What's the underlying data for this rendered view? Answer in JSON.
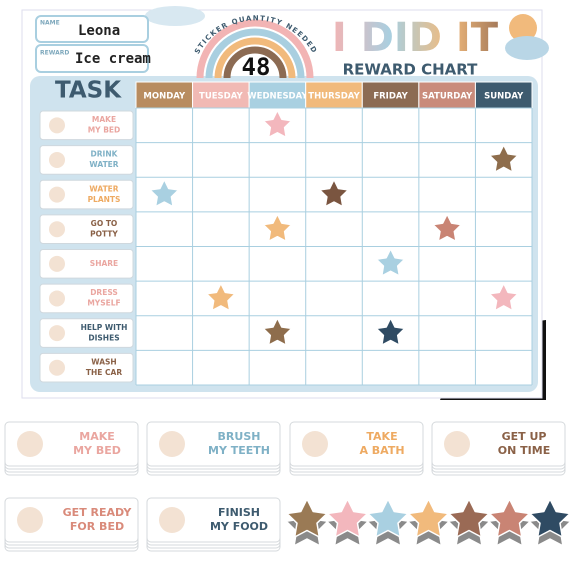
{
  "header": {
    "name_label": "NAME",
    "name": "Leona",
    "reward_label": "REWARD",
    "reward": "Ice cream",
    "sticker_caption": "STICKER QUANTITY NEEDED",
    "sticker_count": "48",
    "title": "I DID IT",
    "subtitle": "REWARD CHART"
  },
  "table": {
    "task_header": "TASK",
    "days": [
      {
        "label": "MONDAY",
        "color": "#b88c60"
      },
      {
        "label": "TUESDAY",
        "color": "#f1b9b4"
      },
      {
        "label": "WEDNESDAY",
        "color": "#a9d0e1"
      },
      {
        "label": "THURSDAY",
        "color": "#f1ba7c"
      },
      {
        "label": "FRIDAY",
        "color": "#8c6b53"
      },
      {
        "label": "SATURDAY",
        "color": "#c98b7b"
      },
      {
        "label": "SUNDAY",
        "color": "#3e5b6f"
      }
    ],
    "tasks": [
      {
        "lines": [
          "MAKE",
          "MY BED"
        ],
        "color": "#eaa6a0"
      },
      {
        "lines": [
          "DRINK",
          "WATER"
        ],
        "color": "#7fb1c6"
      },
      {
        "lines": [
          "WATER",
          "PLANTS"
        ],
        "color": "#eeaa62"
      },
      {
        "lines": [
          "GO TO",
          "POTTY"
        ],
        "color": "#8a6147"
      },
      {
        "lines": [
          "SHARE"
        ],
        "color": "#eaa6a0"
      },
      {
        "lines": [
          "DRESS",
          "MYSELF"
        ],
        "color": "#eaa6a0"
      },
      {
        "lines": [
          "HELP WITH",
          "DISHES"
        ],
        "color": "#3e5b6f"
      },
      {
        "lines": [
          "WASH",
          "THE CAR"
        ],
        "color": "#8a6147"
      }
    ],
    "stars": [
      [
        null,
        null,
        "#f3b7bd",
        null,
        null,
        null,
        null
      ],
      [
        null,
        null,
        null,
        null,
        null,
        null,
        "#8e6d4c"
      ],
      [
        "#a9d0e1",
        null,
        null,
        "#7a5540",
        null,
        null,
        null
      ],
      [
        null,
        null,
        "#f1ba7c",
        null,
        null,
        "#c98474",
        null
      ],
      [
        null,
        null,
        null,
        null,
        "#a9d0e1",
        null,
        null
      ],
      [
        null,
        "#f1ba7c",
        null,
        null,
        null,
        null,
        "#f3b7bd"
      ],
      [
        null,
        null,
        "#8e6d4c",
        null,
        "#2f4b63",
        null,
        null
      ],
      [
        null,
        null,
        null,
        null,
        null,
        null,
        null
      ]
    ]
  },
  "cards": [
    {
      "lines": [
        "MAKE",
        "MY BED"
      ],
      "color": "#eaa6a0"
    },
    {
      "lines": [
        "BRUSH",
        "MY TEETH"
      ],
      "color": "#7fb1c6"
    },
    {
      "lines": [
        "TAKE",
        "A BATH"
      ],
      "color": "#eeaa62"
    },
    {
      "lines": [
        "GET UP",
        "ON TIME"
      ],
      "color": "#8a6147"
    },
    {
      "lines": [
        "GET READY",
        "FOR BED"
      ],
      "color": "#d98a7a"
    },
    {
      "lines": [
        "FINISH",
        "MY FOOD"
      ],
      "color": "#3e5b6f"
    }
  ],
  "loose_stars": [
    "#9a7a55",
    "#f3b7bd",
    "#a9d0e1",
    "#f1ba7c",
    "#9a6a55",
    "#c98474",
    "#2f4b63"
  ]
}
